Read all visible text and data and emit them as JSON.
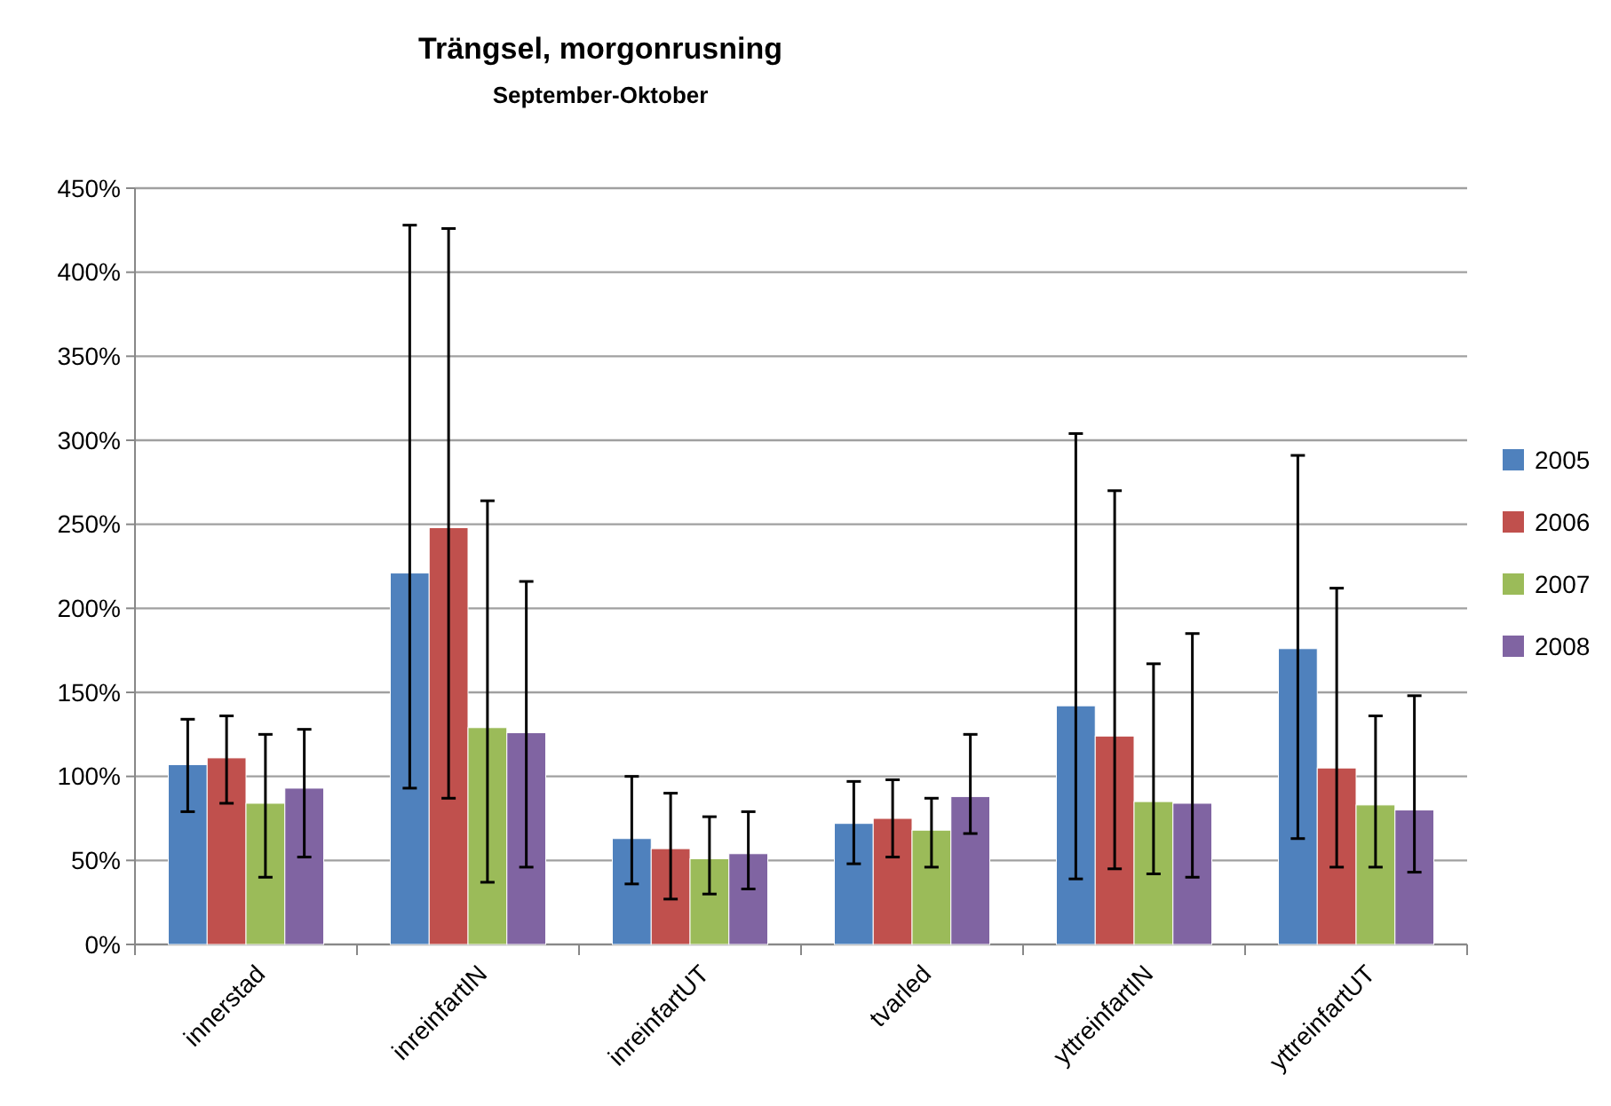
{
  "chart_data": {
    "type": "bar",
    "title": "Trängsel, morgonrusning",
    "subtitle": "September-Oktober",
    "categories": [
      "innerstad",
      "inreinfartIN",
      "inreinfartUT",
      "tvarled",
      "yttreinfartIN",
      "yttreinfartUT"
    ],
    "series": [
      {
        "name": "2005",
        "color": "#4f81bd",
        "values": [
          107,
          221,
          63,
          72,
          142,
          176
        ],
        "errors": [
          [
            79,
            134
          ],
          [
            93,
            428
          ],
          [
            36,
            100
          ],
          [
            48,
            97
          ],
          [
            39,
            304
          ],
          [
            63,
            291
          ]
        ]
      },
      {
        "name": "2006",
        "color": "#c0504d",
        "values": [
          111,
          248,
          57,
          75,
          124,
          105
        ],
        "errors": [
          [
            84,
            136
          ],
          [
            87,
            426
          ],
          [
            27,
            90
          ],
          [
            52,
            98
          ],
          [
            45,
            270
          ],
          [
            46,
            212
          ]
        ]
      },
      {
        "name": "2007",
        "color": "#9bbb59",
        "values": [
          84,
          129,
          51,
          68,
          85,
          83
        ],
        "errors": [
          [
            40,
            125
          ],
          [
            37,
            264
          ],
          [
            30,
            76
          ],
          [
            46,
            87
          ],
          [
            42,
            167
          ],
          [
            46,
            136
          ]
        ]
      },
      {
        "name": "2008",
        "color": "#8064a2",
        "values": [
          93,
          126,
          54,
          88,
          84,
          80
        ],
        "errors": [
          [
            52,
            128
          ],
          [
            46,
            216
          ],
          [
            33,
            79
          ],
          [
            66,
            125
          ],
          [
            40,
            185
          ],
          [
            43,
            148
          ]
        ]
      }
    ],
    "ylim": [
      0,
      450
    ],
    "yticks": [
      {
        "value": 0,
        "label": "0%"
      },
      {
        "value": 50,
        "label": "50%"
      },
      {
        "value": 100,
        "label": "100%"
      },
      {
        "value": 150,
        "label": "150%"
      },
      {
        "value": 200,
        "label": "200%"
      },
      {
        "value": 250,
        "label": "250%"
      },
      {
        "value": 300,
        "label": "300%"
      },
      {
        "value": 350,
        "label": "350%"
      },
      {
        "value": 400,
        "label": "400%"
      },
      {
        "value": 450,
        "label": "450%"
      }
    ],
    "grid": "y",
    "legend": "right"
  }
}
